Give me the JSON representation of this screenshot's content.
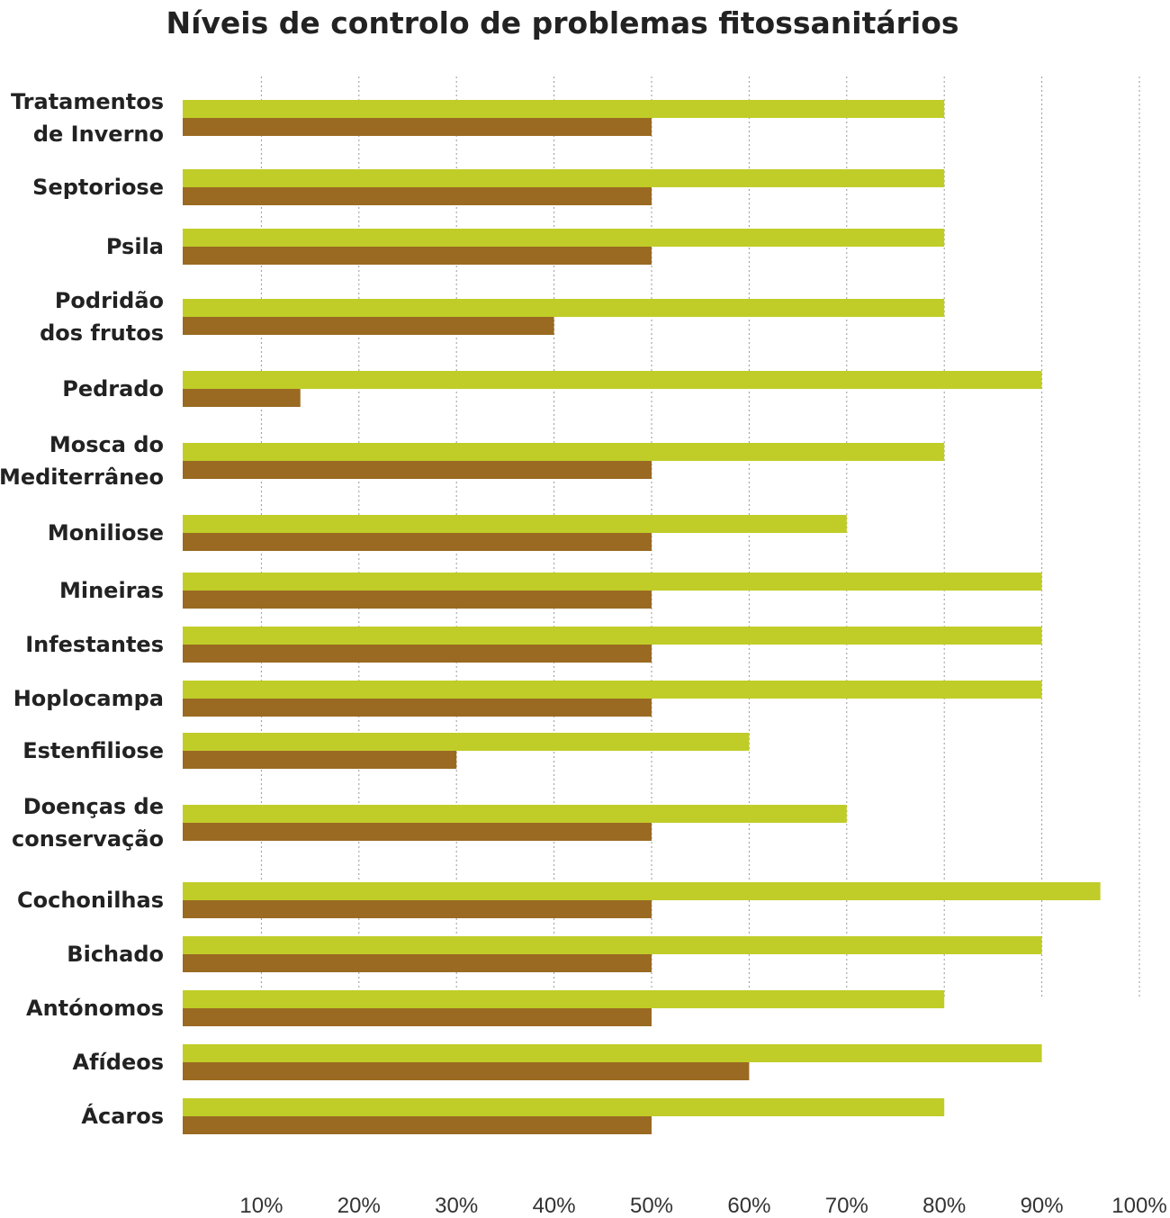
{
  "chart_data": {
    "type": "bar",
    "orientation": "horizontal",
    "title": "Níveis de controlo de problemas fitossanitários",
    "xlabel": "",
    "ylabel": "",
    "xlim": [
      0,
      100
    ],
    "x_ticks": [
      "10%",
      "20%",
      "30%",
      "40%",
      "50%",
      "60%",
      "70%",
      "80%",
      "90%",
      "100%"
    ],
    "grid": "vertical dotted",
    "legend": "none",
    "categories": [
      [
        "Tratamentos",
        "de Inverno"
      ],
      [
        "Septoriose"
      ],
      [
        "Psila"
      ],
      [
        "Podridão",
        "dos  frutos"
      ],
      [
        "Pedrado"
      ],
      [
        "Mosca do",
        "Mediterrâneo"
      ],
      [
        "Moniliose"
      ],
      [
        "Mineiras"
      ],
      [
        "Infestantes"
      ],
      [
        "Hoplocampa"
      ],
      [
        "Estenfiliose"
      ],
      [
        "Doenças de",
        "conservação"
      ],
      [
        "Cochonilhas"
      ],
      [
        "Bichado"
      ],
      [
        "Antónomos"
      ],
      [
        "Afídeos"
      ],
      [
        "Ácaros"
      ]
    ],
    "series": [
      {
        "color": "#c0cd28",
        "values": [
          80,
          80,
          80,
          80,
          90,
          80,
          70,
          90,
          90,
          90,
          60,
          70,
          96,
          90,
          80,
          90,
          80
        ]
      },
      {
        "color": "#9a6a22",
        "values": [
          50,
          50,
          50,
          40,
          14,
          50,
          50,
          50,
          50,
          50,
          30,
          50,
          50,
          50,
          50,
          60,
          50
        ]
      }
    ]
  }
}
